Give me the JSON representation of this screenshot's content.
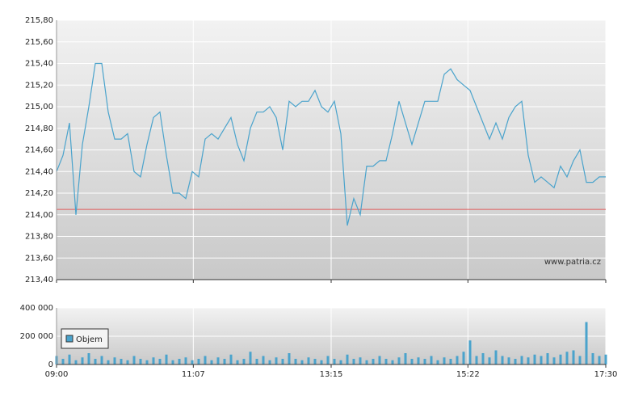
{
  "chart_data": [
    {
      "type": "line",
      "xlim": [
        540,
        1050
      ],
      "ylim": [
        213.4,
        215.8
      ],
      "yticks": [
        {
          "value": 213.4,
          "label": "213,40"
        },
        {
          "value": 213.6,
          "label": "213,60"
        },
        {
          "value": 213.8,
          "label": "213,80"
        },
        {
          "value": 214.0,
          "label": "214,00"
        },
        {
          "value": 214.2,
          "label": "214,20"
        },
        {
          "value": 214.4,
          "label": "214,40"
        },
        {
          "value": 214.6,
          "label": "214,60"
        },
        {
          "value": 214.8,
          "label": "214,80"
        },
        {
          "value": 215.0,
          "label": "215,00"
        },
        {
          "value": 215.2,
          "label": "215,20"
        },
        {
          "value": 215.4,
          "label": "215,40"
        },
        {
          "value": 215.6,
          "label": "215,60"
        },
        {
          "value": 215.8,
          "label": "215,80"
        }
      ],
      "xticks": [
        {
          "value": 540,
          "label": "09:00"
        },
        {
          "value": 667,
          "label": "11:07"
        },
        {
          "value": 795,
          "label": "13:15"
        },
        {
          "value": 922,
          "label": "15:22"
        },
        {
          "value": 1050,
          "label": "17:30"
        }
      ],
      "grid": true,
      "color": "#4aa3cc",
      "reference_line": {
        "value": 214.05,
        "color": "#e05a5a"
      },
      "watermark": "www.patria.cz",
      "x": [
        540,
        546,
        552,
        558,
        564,
        570,
        576,
        582,
        588,
        594,
        600,
        606,
        612,
        618,
        624,
        630,
        636,
        642,
        648,
        654,
        660,
        666,
        672,
        678,
        684,
        690,
        696,
        702,
        708,
        714,
        720,
        726,
        732,
        738,
        744,
        750,
        756,
        762,
        768,
        774,
        780,
        786,
        792,
        798,
        804,
        810,
        816,
        822,
        828,
        834,
        840,
        846,
        852,
        858,
        864,
        870,
        876,
        882,
        888,
        894,
        900,
        906,
        912,
        918,
        924,
        930,
        936,
        942,
        948,
        954,
        960,
        966,
        972,
        978,
        984,
        990,
        996,
        1002,
        1008,
        1014,
        1020,
        1026,
        1032,
        1038,
        1044,
        1050
      ],
      "values": [
        214.4,
        214.55,
        214.85,
        214.0,
        214.65,
        215.0,
        215.4,
        215.4,
        214.95,
        214.7,
        214.7,
        214.75,
        214.4,
        214.35,
        214.65,
        214.9,
        214.95,
        214.55,
        214.2,
        214.2,
        214.15,
        214.4,
        214.35,
        214.7,
        214.75,
        214.7,
        214.8,
        214.9,
        214.65,
        214.5,
        214.8,
        214.95,
        214.95,
        215.0,
        214.9,
        214.6,
        215.05,
        215.0,
        215.05,
        215.05,
        215.15,
        215.0,
        214.95,
        215.05,
        214.75,
        213.9,
        214.15,
        214.0,
        214.45,
        214.45,
        214.5,
        214.5,
        214.75,
        215.05,
        214.85,
        214.65,
        214.85,
        215.05,
        215.05,
        215.05,
        215.3,
        215.35,
        215.25,
        215.2,
        215.15,
        215.0,
        214.85,
        214.7,
        214.85,
        214.7,
        214.9,
        215.0,
        215.05,
        214.55,
        214.3,
        214.35,
        214.3,
        214.25,
        214.45,
        214.35,
        214.5,
        214.6,
        214.3,
        214.3,
        214.35,
        214.35
      ]
    },
    {
      "type": "bar",
      "xlim": [
        540,
        1050
      ],
      "ylim": [
        0,
        400000
      ],
      "yticks": [
        0,
        {
          "value": 200000,
          "label": "200 000"
        },
        {
          "value": 400000,
          "label": "400 000"
        }
      ],
      "xticks": [
        {
          "value": 540,
          "label": "09:00"
        },
        {
          "value": 667,
          "label": "11:07"
        },
        {
          "value": 795,
          "label": "13:15"
        },
        {
          "value": 922,
          "label": "15:22"
        },
        {
          "value": 1050,
          "label": "17:30"
        }
      ],
      "grid": true,
      "series": [
        {
          "name": "Objem",
          "color": "#4aa3cc",
          "x": [
            540,
            546,
            552,
            558,
            564,
            570,
            576,
            582,
            588,
            594,
            600,
            606,
            612,
            618,
            624,
            630,
            636,
            642,
            648,
            654,
            660,
            666,
            672,
            678,
            684,
            690,
            696,
            702,
            708,
            714,
            720,
            726,
            732,
            738,
            744,
            750,
            756,
            762,
            768,
            774,
            780,
            786,
            792,
            798,
            804,
            810,
            816,
            822,
            828,
            834,
            840,
            846,
            852,
            858,
            864,
            870,
            876,
            882,
            888,
            894,
            900,
            906,
            912,
            918,
            924,
            930,
            936,
            942,
            948,
            954,
            960,
            966,
            972,
            978,
            984,
            990,
            996,
            1002,
            1008,
            1014,
            1020,
            1026,
            1032,
            1038,
            1044,
            1050
          ],
          "values": [
            60000,
            40000,
            70000,
            30000,
            50000,
            80000,
            40000,
            60000,
            30000,
            50000,
            40000,
            30000,
            60000,
            40000,
            30000,
            50000,
            40000,
            70000,
            30000,
            40000,
            50000,
            30000,
            40000,
            60000,
            30000,
            50000,
            40000,
            70000,
            30000,
            40000,
            90000,
            40000,
            60000,
            30000,
            50000,
            40000,
            80000,
            40000,
            30000,
            50000,
            40000,
            30000,
            60000,
            40000,
            30000,
            70000,
            40000,
            50000,
            30000,
            40000,
            60000,
            40000,
            30000,
            50000,
            80000,
            40000,
            50000,
            40000,
            60000,
            30000,
            50000,
            40000,
            60000,
            90000,
            170000,
            60000,
            80000,
            50000,
            100000,
            60000,
            50000,
            40000,
            60000,
            50000,
            70000,
            60000,
            80000,
            50000,
            70000,
            90000,
            100000,
            60000,
            300000,
            80000,
            60000,
            70000
          ]
        }
      ]
    }
  ]
}
